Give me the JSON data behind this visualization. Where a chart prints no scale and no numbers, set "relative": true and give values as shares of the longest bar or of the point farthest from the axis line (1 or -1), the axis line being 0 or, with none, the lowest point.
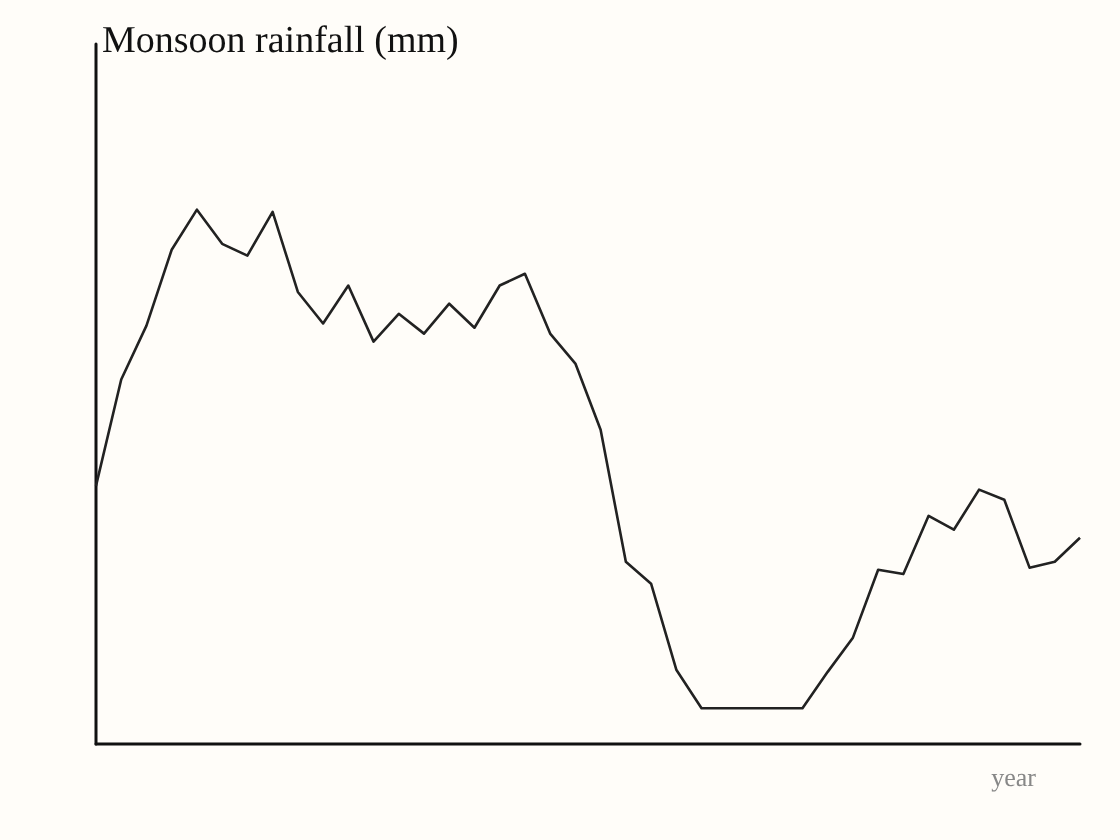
{
  "chart_data": {
    "type": "line",
    "title": "Monsoon rainfall (mm)",
    "xlabel": "year",
    "relative": true,
    "color": "#222222",
    "marker": "none",
    "line_style": "solid",
    "categories": [
      null,
      null,
      null,
      null,
      null,
      null,
      null,
      null,
      null,
      null,
      null,
      null,
      null,
      null,
      null,
      null,
      null,
      null,
      null,
      null,
      null,
      null,
      null,
      null,
      null,
      null,
      null,
      null,
      null,
      null,
      null,
      null,
      null,
      null,
      null,
      null,
      null,
      null,
      null,
      null
    ],
    "values": [
      0.483,
      0.682,
      0.783,
      0.925,
      1,
      0.936,
      0.914,
      0.996,
      0.846,
      0.787,
      0.858,
      0.753,
      0.805,
      0.768,
      0.824,
      0.779,
      0.858,
      0.88,
      0.768,
      0.712,
      0.588,
      0.341,
      0.3,
      0.139,
      0.067,
      0.067,
      0.067,
      0.067,
      0.067,
      0.135,
      0.199,
      0.326,
      0.318,
      0.427,
      0.401,
      0.476,
      0.457,
      0.33,
      0.341,
      0.386
    ]
  }
}
